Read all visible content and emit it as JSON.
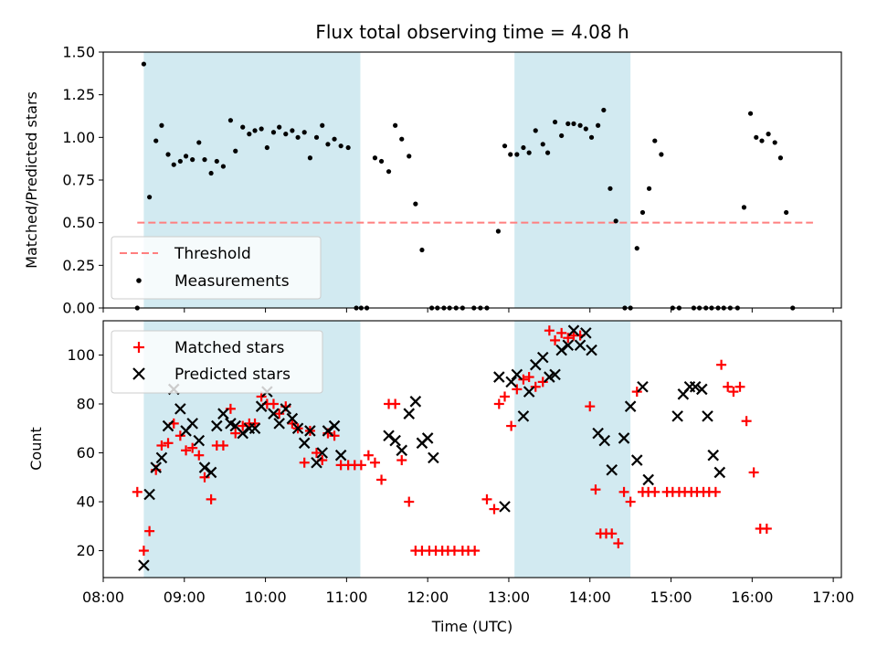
{
  "chart_data": {
    "title": "Flux total observing time = 4.08 h",
    "xlabel": "Time (UTC)",
    "x_unit": "hours UTC",
    "xlim": [
      8.0,
      17.1
    ],
    "x_ticks": [
      {
        "value": 8,
        "label": "08:00"
      },
      {
        "value": 9,
        "label": "09:00"
      },
      {
        "value": 10,
        "label": "10:00"
      },
      {
        "value": 11,
        "label": "11:00"
      },
      {
        "value": 12,
        "label": "12:00"
      },
      {
        "value": 13,
        "label": "13:00"
      },
      {
        "value": 14,
        "label": "14:00"
      },
      {
        "value": 15,
        "label": "15:00"
      },
      {
        "value": 16,
        "label": "16:00"
      },
      {
        "value": 17,
        "label": "17:00"
      }
    ],
    "shaded_intervals": [
      [
        8.5,
        11.17
      ],
      [
        13.07,
        14.5
      ]
    ],
    "shade_color": "#add8e6",
    "top": {
      "type": "scatter",
      "ylabel": "Matched/Predicted stars",
      "ylim": [
        0,
        1.5
      ],
      "y_ticks": [
        "0.00",
        "0.25",
        "0.50",
        "0.75",
        "1.00",
        "1.25",
        "1.50"
      ],
      "threshold": {
        "name": "Threshold",
        "value": 0.5,
        "x_range": [
          8.42,
          16.75
        ],
        "color": "#ff7f7f"
      },
      "measurements": {
        "name": "Measurements",
        "color": "#000000",
        "points": [
          [
            8.42,
            0.0
          ],
          [
            8.5,
            1.43
          ],
          [
            8.57,
            0.65
          ],
          [
            8.65,
            0.98
          ],
          [
            8.72,
            1.07
          ],
          [
            8.8,
            0.9
          ],
          [
            8.87,
            0.84
          ],
          [
            8.95,
            0.86
          ],
          [
            9.02,
            0.89
          ],
          [
            9.1,
            0.87
          ],
          [
            9.18,
            0.97
          ],
          [
            9.25,
            0.87
          ],
          [
            9.33,
            0.79
          ],
          [
            9.4,
            0.86
          ],
          [
            9.48,
            0.83
          ],
          [
            9.57,
            1.1
          ],
          [
            9.63,
            0.92
          ],
          [
            9.72,
            1.06
          ],
          [
            9.8,
            1.02
          ],
          [
            9.87,
            1.04
          ],
          [
            9.95,
            1.05
          ],
          [
            10.02,
            0.94
          ],
          [
            10.1,
            1.03
          ],
          [
            10.17,
            1.06
          ],
          [
            10.25,
            1.02
          ],
          [
            10.33,
            1.04
          ],
          [
            10.4,
            1.0
          ],
          [
            10.48,
            1.03
          ],
          [
            10.55,
            0.88
          ],
          [
            10.63,
            1.0
          ],
          [
            10.7,
            1.07
          ],
          [
            10.77,
            0.96
          ],
          [
            10.85,
            0.99
          ],
          [
            10.93,
            0.95
          ],
          [
            11.02,
            0.94
          ],
          [
            11.12,
            0.0
          ],
          [
            11.18,
            0.0
          ],
          [
            11.25,
            0.0
          ],
          [
            11.35,
            0.88
          ],
          [
            11.43,
            0.86
          ],
          [
            11.52,
            0.8
          ],
          [
            11.6,
            1.07
          ],
          [
            11.68,
            0.99
          ],
          [
            11.77,
            0.89
          ],
          [
            11.85,
            0.61
          ],
          [
            11.93,
            0.34
          ],
          [
            12.05,
            0.0
          ],
          [
            12.12,
            0.0
          ],
          [
            12.2,
            0.0
          ],
          [
            12.27,
            0.0
          ],
          [
            12.35,
            0.0
          ],
          [
            12.43,
            0.0
          ],
          [
            12.57,
            0.0
          ],
          [
            12.65,
            0.0
          ],
          [
            12.73,
            0.0
          ],
          [
            12.87,
            0.45
          ],
          [
            12.95,
            0.95
          ],
          [
            13.02,
            0.9
          ],
          [
            13.1,
            0.9
          ],
          [
            13.18,
            0.94
          ],
          [
            13.25,
            0.91
          ],
          [
            13.33,
            1.04
          ],
          [
            13.42,
            0.96
          ],
          [
            13.48,
            0.91
          ],
          [
            13.57,
            1.09
          ],
          [
            13.65,
            1.01
          ],
          [
            13.73,
            1.08
          ],
          [
            13.8,
            1.08
          ],
          [
            13.88,
            1.07
          ],
          [
            13.95,
            1.05
          ],
          [
            14.02,
            1.0
          ],
          [
            14.1,
            1.07
          ],
          [
            14.17,
            1.16
          ],
          [
            14.25,
            0.7
          ],
          [
            14.32,
            0.51
          ],
          [
            14.43,
            0.0
          ],
          [
            14.5,
            0.0
          ],
          [
            14.58,
            0.35
          ],
          [
            14.65,
            0.56
          ],
          [
            14.73,
            0.7
          ],
          [
            14.8,
            0.98
          ],
          [
            14.88,
            0.9
          ],
          [
            15.02,
            0.0
          ],
          [
            15.1,
            0.0
          ],
          [
            15.28,
            0.0
          ],
          [
            15.35,
            0.0
          ],
          [
            15.43,
            0.0
          ],
          [
            15.5,
            0.0
          ],
          [
            15.58,
            0.0
          ],
          [
            15.65,
            0.0
          ],
          [
            15.73,
            0.0
          ],
          [
            15.82,
            0.0
          ],
          [
            15.9,
            0.59
          ],
          [
            15.98,
            1.14
          ],
          [
            16.05,
            1.0
          ],
          [
            16.12,
            0.98
          ],
          [
            16.2,
            1.02
          ],
          [
            16.28,
            0.97
          ],
          [
            16.35,
            0.88
          ],
          [
            16.42,
            0.56
          ],
          [
            16.5,
            0.0
          ]
        ]
      },
      "legend": {
        "position": "lower left"
      }
    },
    "bottom": {
      "type": "scatter",
      "ylabel": "Count",
      "ylim": [
        9,
        114
      ],
      "y_ticks": [
        "20",
        "40",
        "60",
        "80",
        "100"
      ],
      "legend": {
        "position": "upper left"
      },
      "series": [
        {
          "name": "Matched stars",
          "marker": "+",
          "color": "#ff0000",
          "points": [
            [
              8.42,
              44
            ],
            [
              8.5,
              20
            ],
            [
              8.57,
              28
            ],
            [
              8.65,
              53
            ],
            [
              8.72,
              63
            ],
            [
              8.8,
              64
            ],
            [
              8.87,
              72
            ],
            [
              8.95,
              67
            ],
            [
              9.02,
              61
            ],
            [
              9.1,
              62
            ],
            [
              9.18,
              59
            ],
            [
              9.25,
              50
            ],
            [
              9.33,
              41
            ],
            [
              9.4,
              63
            ],
            [
              9.48,
              63
            ],
            [
              9.57,
              78
            ],
            [
              9.63,
              68
            ],
            [
              9.72,
              71
            ],
            [
              9.8,
              72
            ],
            [
              9.87,
              72
            ],
            [
              9.95,
              83
            ],
            [
              10.02,
              80
            ],
            [
              10.1,
              80
            ],
            [
              10.17,
              76
            ],
            [
              10.25,
              79
            ],
            [
              10.33,
              72
            ],
            [
              10.4,
              70
            ],
            [
              10.48,
              56
            ],
            [
              10.55,
              69
            ],
            [
              10.63,
              60
            ],
            [
              10.7,
              57
            ],
            [
              10.77,
              68
            ],
            [
              10.85,
              67
            ],
            [
              10.93,
              55
            ],
            [
              11.02,
              55
            ],
            [
              11.1,
              55
            ],
            [
              11.18,
              55
            ],
            [
              11.27,
              59
            ],
            [
              11.35,
              56
            ],
            [
              11.43,
              49
            ],
            [
              11.52,
              80
            ],
            [
              11.6,
              80
            ],
            [
              11.68,
              57
            ],
            [
              11.77,
              40
            ],
            [
              11.85,
              20
            ],
            [
              11.93,
              20
            ],
            [
              12.02,
              20
            ],
            [
              12.1,
              20
            ],
            [
              12.18,
              20
            ],
            [
              12.25,
              20
            ],
            [
              12.33,
              20
            ],
            [
              12.43,
              20
            ],
            [
              12.5,
              20
            ],
            [
              12.58,
              20
            ],
            [
              12.73,
              41
            ],
            [
              12.82,
              37
            ],
            [
              12.88,
              80
            ],
            [
              12.95,
              83
            ],
            [
              13.03,
              71
            ],
            [
              13.1,
              86
            ],
            [
              13.18,
              90
            ],
            [
              13.25,
              91
            ],
            [
              13.33,
              87
            ],
            [
              13.42,
              89
            ],
            [
              13.5,
              110
            ],
            [
              13.57,
              106
            ],
            [
              13.65,
              109
            ],
            [
              13.73,
              107
            ],
            [
              13.8,
              108
            ],
            [
              13.88,
              108
            ],
            [
              14.0,
              79
            ],
            [
              14.07,
              45
            ],
            [
              14.13,
              27
            ],
            [
              14.2,
              27
            ],
            [
              14.27,
              27
            ],
            [
              14.35,
              23
            ],
            [
              14.42,
              44
            ],
            [
              14.5,
              40
            ],
            [
              14.58,
              85
            ],
            [
              14.65,
              44
            ],
            [
              14.72,
              44
            ],
            [
              14.8,
              44
            ],
            [
              14.95,
              44
            ],
            [
              15.02,
              44
            ],
            [
              15.1,
              44
            ],
            [
              15.17,
              44
            ],
            [
              15.25,
              44
            ],
            [
              15.32,
              44
            ],
            [
              15.4,
              44
            ],
            [
              15.47,
              44
            ],
            [
              15.55,
              44
            ],
            [
              15.62,
              96
            ],
            [
              15.7,
              87
            ],
            [
              15.77,
              85
            ],
            [
              15.85,
              87
            ],
            [
              15.93,
              73
            ],
            [
              16.02,
              52
            ],
            [
              16.1,
              29
            ],
            [
              16.18,
              29
            ]
          ]
        },
        {
          "name": "Predicted stars",
          "marker": "x",
          "color": "#000000",
          "points": [
            [
              8.5,
              14
            ],
            [
              8.57,
              43
            ],
            [
              8.65,
              54
            ],
            [
              8.72,
              58
            ],
            [
              8.8,
              71
            ],
            [
              8.87,
              86
            ],
            [
              8.95,
              78
            ],
            [
              9.02,
              69
            ],
            [
              9.1,
              72
            ],
            [
              9.18,
              65
            ],
            [
              9.25,
              54
            ],
            [
              9.33,
              52
            ],
            [
              9.4,
              71
            ],
            [
              9.48,
              76
            ],
            [
              9.57,
              72
            ],
            [
              9.63,
              71
            ],
            [
              9.72,
              68
            ],
            [
              9.8,
              70
            ],
            [
              9.87,
              70
            ],
            [
              9.95,
              79
            ],
            [
              10.02,
              85
            ],
            [
              10.1,
              76
            ],
            [
              10.17,
              72
            ],
            [
              10.25,
              78
            ],
            [
              10.33,
              74
            ],
            [
              10.4,
              70
            ],
            [
              10.48,
              64
            ],
            [
              10.55,
              69
            ],
            [
              10.63,
              56
            ],
            [
              10.7,
              60
            ],
            [
              10.77,
              69
            ],
            [
              10.85,
              71
            ],
            [
              10.93,
              59
            ],
            [
              11.52,
              67
            ],
            [
              11.6,
              65
            ],
            [
              11.68,
              61
            ],
            [
              11.77,
              76
            ],
            [
              11.85,
              81
            ],
            [
              11.93,
              64
            ],
            [
              12.0,
              66
            ],
            [
              12.07,
              58
            ],
            [
              12.88,
              91
            ],
            [
              12.95,
              38
            ],
            [
              13.03,
              89
            ],
            [
              13.1,
              92
            ],
            [
              13.18,
              75
            ],
            [
              13.25,
              85
            ],
            [
              13.33,
              96
            ],
            [
              13.42,
              99
            ],
            [
              13.5,
              91
            ],
            [
              13.57,
              92
            ],
            [
              13.65,
              102
            ],
            [
              13.73,
              104
            ],
            [
              13.8,
              110
            ],
            [
              13.88,
              104
            ],
            [
              13.95,
              109
            ],
            [
              14.02,
              102
            ],
            [
              14.1,
              68
            ],
            [
              14.18,
              65
            ],
            [
              14.27,
              53
            ],
            [
              14.42,
              66
            ],
            [
              14.5,
              79
            ],
            [
              14.58,
              57
            ],
            [
              14.65,
              87
            ],
            [
              14.72,
              49
            ],
            [
              15.08,
              75
            ],
            [
              15.15,
              84
            ],
            [
              15.23,
              87
            ],
            [
              15.3,
              87
            ],
            [
              15.38,
              86
            ],
            [
              15.45,
              75
            ],
            [
              15.52,
              59
            ],
            [
              15.6,
              52
            ]
          ]
        }
      ]
    }
  }
}
